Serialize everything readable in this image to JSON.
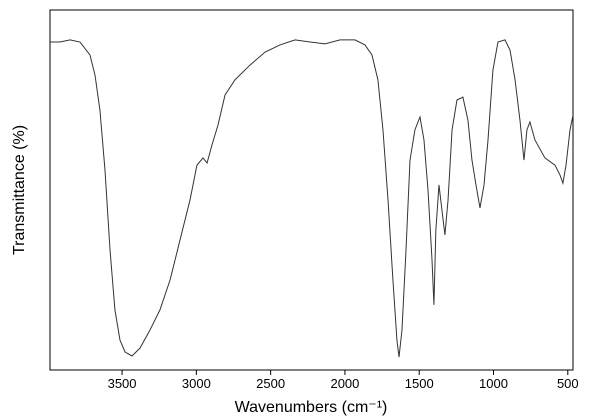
{
  "chart_data": {
    "type": "line",
    "x_label": "Wavenumbers (cm⁻¹)",
    "y_label": "Transmittance (%)",
    "x": [
      3985,
      3918,
      3850,
      3783,
      3716,
      3682,
      3649,
      3615,
      3581,
      3548,
      3514,
      3480,
      3433,
      3379,
      3312,
      3245,
      3177,
      3110,
      3043,
      2996,
      2955,
      2928,
      2895,
      2854,
      2807,
      2740,
      2639,
      2538,
      2437,
      2336,
      2235,
      2134,
      2033,
      1932,
      1865,
      1818,
      1778,
      1744,
      1710,
      1677,
      1650,
      1636,
      1616,
      1589,
      1562,
      1529,
      1495,
      1468,
      1441,
      1414,
      1401,
      1388,
      1367,
      1347,
      1327,
      1306,
      1279,
      1246,
      1206,
      1172,
      1145,
      1118,
      1091,
      1064,
      1037,
      1004,
      970,
      923,
      889,
      855,
      822,
      795,
      775,
      755,
      721,
      654,
      586,
      553,
      533,
      512,
      485,
      465
    ],
    "series": [
      {
        "color": "#333333",
        "values": [
          91.1,
          91.1,
          91.7,
          91.1,
          87.5,
          81.9,
          72.2,
          55.6,
          33.3,
          16.7,
          8.3,
          5.0,
          3.9,
          6.1,
          11.1,
          16.7,
          25.0,
          36.1,
          47.2,
          56.9,
          58.9,
          57.5,
          62.5,
          68.1,
          76.4,
          80.6,
          84.7,
          88.3,
          90.3,
          91.7,
          91.1,
          90.6,
          91.7,
          91.7,
          90.3,
          87.5,
          80.6,
          66.7,
          47.2,
          25.0,
          8.3,
          3.6,
          11.1,
          33.3,
          58.3,
          66.7,
          70.3,
          63.9,
          50.0,
          30.6,
          18.1,
          38.9,
          51.4,
          44.4,
          37.5,
          47.2,
          66.7,
          75.0,
          75.8,
          69.4,
          58.3,
          51.4,
          45.0,
          51.4,
          63.9,
          83.3,
          91.1,
          91.7,
          88.9,
          80.6,
          69.4,
          58.3,
          66.7,
          68.9,
          63.9,
          58.9,
          56.9,
          54.2,
          51.9,
          56.9,
          66.7,
          70.8
        ]
      }
    ],
    "xlim": [
      3985,
      465
    ],
    "ylim": [
      0,
      100
    ],
    "xticks": [
      3500,
      3000,
      2500,
      2000,
      1500,
      1000,
      500
    ]
  }
}
